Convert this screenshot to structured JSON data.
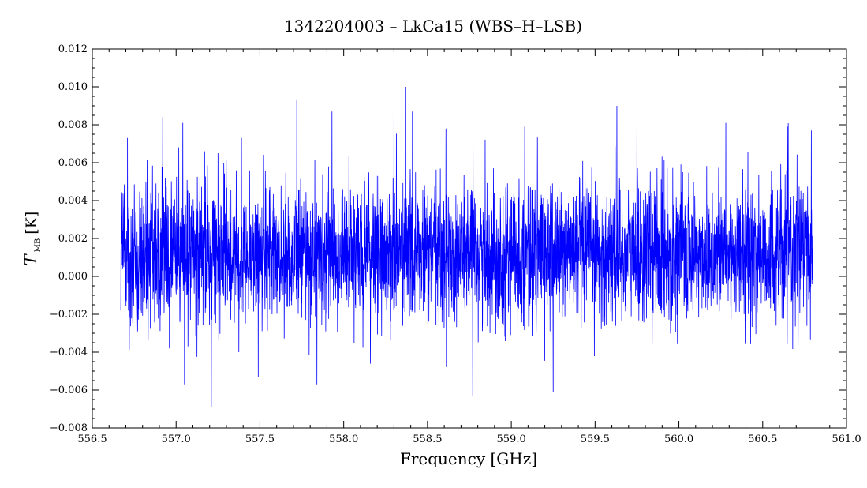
{
  "chart_data": {
    "type": "line",
    "title": "1342204003 – LkCa15 (WBS–H–LSB)",
    "xlabel": "Frequency [GHz]",
    "ylabel": {
      "symbol": "T",
      "subscript": "MB",
      "unit": "[K]"
    },
    "xlim": [
      556.5,
      561.0
    ],
    "ylim": [
      -0.008,
      0.012
    ],
    "xticks": [
      "556.5",
      "557.0",
      "557.5",
      "558.0",
      "558.5",
      "559.0",
      "559.5",
      "560.0",
      "560.5",
      "561.0"
    ],
    "yticks": [
      "−0.008",
      "−0.006",
      "−0.004",
      "−0.002",
      "0.000",
      "0.002",
      "0.004",
      "0.006",
      "0.008",
      "0.010",
      "0.012"
    ],
    "grid": false,
    "series": [
      {
        "color": "#0000ff",
        "freq_range": [
          556.67,
          560.8
        ],
        "mean": 0.0012,
        "std": 0.0018,
        "x": [
          556.67,
          556.71,
          556.77,
          556.88,
          556.92,
          556.96,
          557.04,
          557.05,
          557.17,
          557.21,
          557.25,
          557.39,
          557.49,
          557.72,
          557.84,
          557.93,
          558.3,
          558.37,
          558.41,
          558.61,
          558.77,
          559.08,
          559.25,
          559.63,
          559.75,
          560.28,
          560.65,
          560.79
        ],
        "y": [
          -0.0018,
          0.0073,
          -0.0029,
          0.0049,
          0.0084,
          -0.0038,
          0.0081,
          -0.0057,
          0.0066,
          -0.0069,
          0.0065,
          0.0073,
          -0.0053,
          0.0093,
          -0.0057,
          0.0087,
          0.0091,
          0.01,
          0.0087,
          0.0078,
          -0.0063,
          0.0079,
          -0.0061,
          0.009,
          0.0091,
          0.0081,
          0.0079,
          0.0077
        ]
      }
    ]
  }
}
